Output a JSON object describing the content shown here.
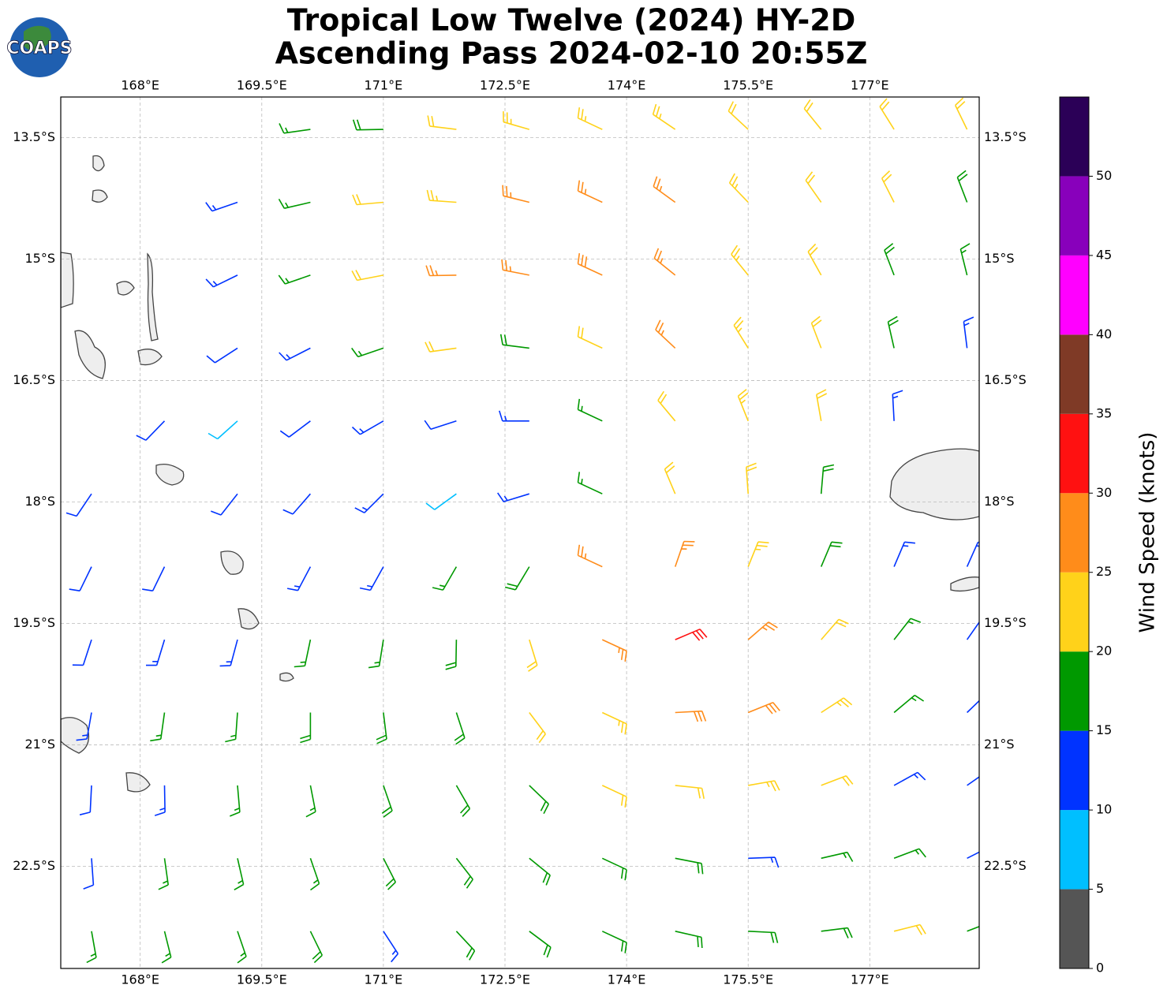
{
  "chart_data": {
    "type": "wind-barbs",
    "title_lines": [
      "Tropical Low Twelve (2024) HY-2D",
      "Ascending Pass 2024-02-10 20:55Z"
    ],
    "logo_text": "COAPS",
    "xlim": [
      167.02,
      178.35
    ],
    "ylim": [
      -23.76,
      -13.0
    ],
    "xticks": [
      {
        "value": 168,
        "label": "168°E"
      },
      {
        "value": 169.5,
        "label": "169.5°E"
      },
      {
        "value": 171,
        "label": "171°E"
      },
      {
        "value": 172.5,
        "label": "172.5°E"
      },
      {
        "value": 174,
        "label": "174°E"
      },
      {
        "value": 175.5,
        "label": "175.5°E"
      },
      {
        "value": 177,
        "label": "177°E"
      }
    ],
    "yticks": [
      {
        "value": -13.5,
        "label": "13.5°S"
      },
      {
        "value": -15,
        "label": "15°S"
      },
      {
        "value": -16.5,
        "label": "16.5°S"
      },
      {
        "value": -18,
        "label": "18°S"
      },
      {
        "value": -19.5,
        "label": "19.5°S"
      },
      {
        "value": -21,
        "label": "21°S"
      },
      {
        "value": -22.5,
        "label": "22.5°S"
      }
    ],
    "grid": true,
    "lons": [
      167.4,
      168.3,
      169.2,
      170.1,
      171.0,
      171.9,
      172.8,
      173.7,
      174.6,
      175.5,
      176.4,
      177.3,
      178.2
    ],
    "lats": [
      -13.4,
      -14.3,
      -15.2,
      -16.1,
      -17.0,
      -17.9,
      -18.8,
      -19.7,
      -20.6,
      -21.5,
      -22.4,
      -23.3
    ],
    "speed": [
      [
        null,
        null,
        null,
        17,
        19,
        22,
        23,
        24,
        23,
        22,
        21,
        21,
        21
      ],
      [
        null,
        null,
        13,
        17,
        21,
        23,
        26,
        27,
        26,
        23,
        22,
        21,
        18
      ],
      [
        null,
        null,
        13,
        16,
        21,
        26,
        27,
        28,
        26,
        24,
        22,
        19,
        17
      ],
      [
        null,
        null,
        12,
        14,
        17,
        20,
        19,
        22,
        25,
        23,
        22,
        18,
        13
      ],
      [
        null,
        12,
        9,
        12,
        13,
        10,
        14,
        17,
        21,
        23,
        21,
        13,
        null
      ],
      [
        11,
        null,
        12,
        12,
        13,
        9,
        13,
        17,
        21,
        22,
        18,
        null,
        null
      ],
      [
        12,
        12,
        null,
        13,
        14,
        16,
        18,
        26,
        27,
        23,
        18,
        14,
        13
      ],
      [
        12,
        13,
        13,
        16,
        17,
        19,
        22,
        27,
        32,
        27,
        22,
        17,
        13
      ],
      [
        13,
        16,
        17,
        18,
        18,
        19,
        21,
        23,
        28,
        28,
        23,
        17,
        13
      ],
      [
        12,
        14,
        16,
        17,
        18,
        18,
        19,
        20,
        22,
        23,
        21,
        14,
        13
      ],
      [
        12,
        16,
        17,
        17,
        18,
        18,
        18,
        19,
        18,
        14,
        17,
        16,
        14
      ],
      [
        16,
        17,
        17,
        18,
        13,
        18,
        19,
        19,
        18,
        18,
        18,
        21,
        18
      ]
    ],
    "direction": [
      [
        null,
        null,
        null,
        262,
        269,
        277,
        286,
        295,
        304,
        313,
        321,
        328,
        334
      ],
      [
        null,
        null,
        251,
        257,
        265,
        274,
        284,
        295,
        306,
        316,
        325,
        333,
        339
      ],
      [
        null,
        null,
        244,
        251,
        259,
        269,
        281,
        295,
        309,
        321,
        331,
        339,
        346
      ],
      [
        null,
        null,
        237,
        243,
        251,
        262,
        277,
        295,
        313,
        328,
        339,
        347,
        353
      ],
      [
        null,
        224,
        228,
        233,
        240,
        252,
        270,
        295,
        320,
        338,
        350,
        357,
        null
      ],
      [
        214,
        null,
        218,
        221,
        225,
        234,
        253,
        295,
        337,
        356,
        5,
        null,
        null
      ],
      [
        206,
        206,
        null,
        208,
        209,
        210,
        211,
        295,
        19,
        22,
        23,
        23,
        24
      ],
      [
        198,
        197,
        195,
        192,
        189,
        181,
        163,
        115,
        67,
        49,
        41,
        38,
        35
      ],
      [
        190,
        188,
        184,
        180,
        173,
        162,
        143,
        115,
        87,
        68,
        57,
        50,
        46
      ],
      [
        183,
        179,
        175,
        169,
        161,
        150,
        134,
        115,
        96,
        80,
        69,
        61,
        55
      ],
      [
        176,
        172,
        167,
        161,
        153,
        142,
        129,
        115,
        101,
        88,
        77,
        69,
        63
      ],
      [
        170,
        166,
        161,
        154,
        147,
        137,
        127,
        115,
        103,
        93,
        83,
        76,
        69
      ]
    ],
    "colorbar": {
      "label": "Wind Speed (knots)",
      "bounds": [
        0,
        5,
        10,
        15,
        20,
        25,
        30,
        35,
        40,
        45,
        50,
        55
      ],
      "colors": [
        "#555555",
        "#00bfff",
        "#0033ff",
        "#009900",
        "#ffd21a",
        "#ff8c1a",
        "#ff1111",
        "#7f3a26",
        "#ff00ff",
        "#8800bb",
        "#2b0057"
      ],
      "ticks": [
        0,
        5,
        10,
        15,
        20,
        25,
        30,
        35,
        40,
        45,
        50
      ]
    }
  }
}
